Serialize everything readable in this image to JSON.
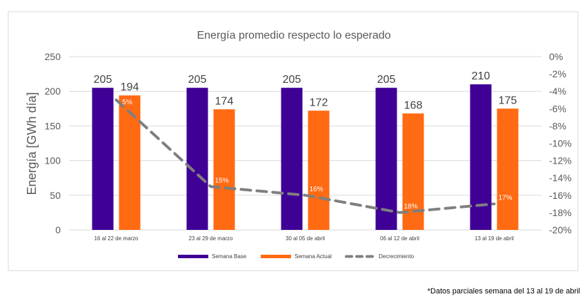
{
  "chart_data": {
    "type": "bar",
    "title": "Energía promedio  respecto lo esperado",
    "ylabel": "Energía [GWh día]",
    "ylim": [
      0,
      250
    ],
    "yticks": [
      "0",
      "50",
      "100",
      "150",
      "200",
      "250"
    ],
    "y2lim": [
      -20,
      0
    ],
    "y2ticks": [
      "0%",
      "-2%",
      "-4%",
      "-6%",
      "-8%",
      "-10%",
      "-12%",
      "-14%",
      "-16%",
      "-18%",
      "-20%"
    ],
    "categories": [
      "16 al 22 de marzo",
      "23 al 29 de marzo",
      "30 al 05 de abril",
      "06 al 12 de abril",
      "13 al 19 de abril"
    ],
    "series": [
      {
        "name": "Semana Base",
        "type": "bar",
        "color": "#3f0096",
        "values": [
          205,
          205,
          205,
          205,
          210
        ]
      },
      {
        "name": "Semana Actual",
        "type": "bar",
        "color": "#ff6a13",
        "values": [
          194,
          174,
          172,
          168,
          175
        ]
      },
      {
        "name": "Decrecimiento",
        "type": "line",
        "style": "dashed",
        "color": "#7f7f7f",
        "axis": "right",
        "values": [
          -5,
          -15,
          -16,
          -18,
          -17
        ],
        "labels": [
          "5%",
          "15%",
          "16%",
          "18%",
          "17%"
        ]
      }
    ],
    "grid": true,
    "legend": "bottom"
  },
  "footnote": "*Datos parciales semana del 13 al 19 de abril"
}
